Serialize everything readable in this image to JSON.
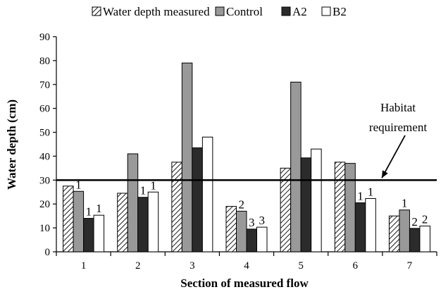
{
  "chart_data": {
    "type": "bar",
    "title": "",
    "xlabel": "Section of measured flow",
    "ylabel": "Water depth (cm)",
    "ylim": [
      0,
      90
    ],
    "yticks": [
      0,
      10,
      20,
      30,
      40,
      50,
      60,
      70,
      80,
      90
    ],
    "grid": false,
    "legend_position": "top",
    "categories": [
      "1",
      "2",
      "3",
      "4",
      "5",
      "6",
      "7"
    ],
    "series": [
      {
        "name": "Water depth measured",
        "pattern": "hatched",
        "color": "#ffffff",
        "values": [
          27.5,
          24.5,
          37.5,
          19,
          35,
          37.5,
          15
        ],
        "labels": [
          "",
          "",
          "",
          "",
          "",
          "",
          ""
        ]
      },
      {
        "name": "Control",
        "pattern": "solid",
        "color": "#999999",
        "values": [
          25.3,
          41,
          79,
          17,
          71,
          37,
          17.5
        ],
        "labels": [
          "1",
          "",
          "",
          "2",
          "",
          "",
          "1"
        ]
      },
      {
        "name": "A2",
        "pattern": "solid",
        "color": "#2b2b2b",
        "values": [
          14,
          22.8,
          43.5,
          9.5,
          39.3,
          20.5,
          9.8
        ],
        "labels": [
          "1",
          "1",
          "",
          "3",
          "",
          "1",
          "2"
        ]
      },
      {
        "name": "B2",
        "pattern": "solid",
        "color": "#ffffff",
        "values": [
          15.3,
          25,
          48,
          10.3,
          43,
          22.3,
          10.8
        ],
        "labels": [
          "1",
          "1",
          "",
          "3",
          "",
          "1",
          "2"
        ]
      }
    ],
    "reference_line": {
      "value": 30,
      "label_lines": [
        "Habitat",
        "requirement"
      ]
    }
  }
}
